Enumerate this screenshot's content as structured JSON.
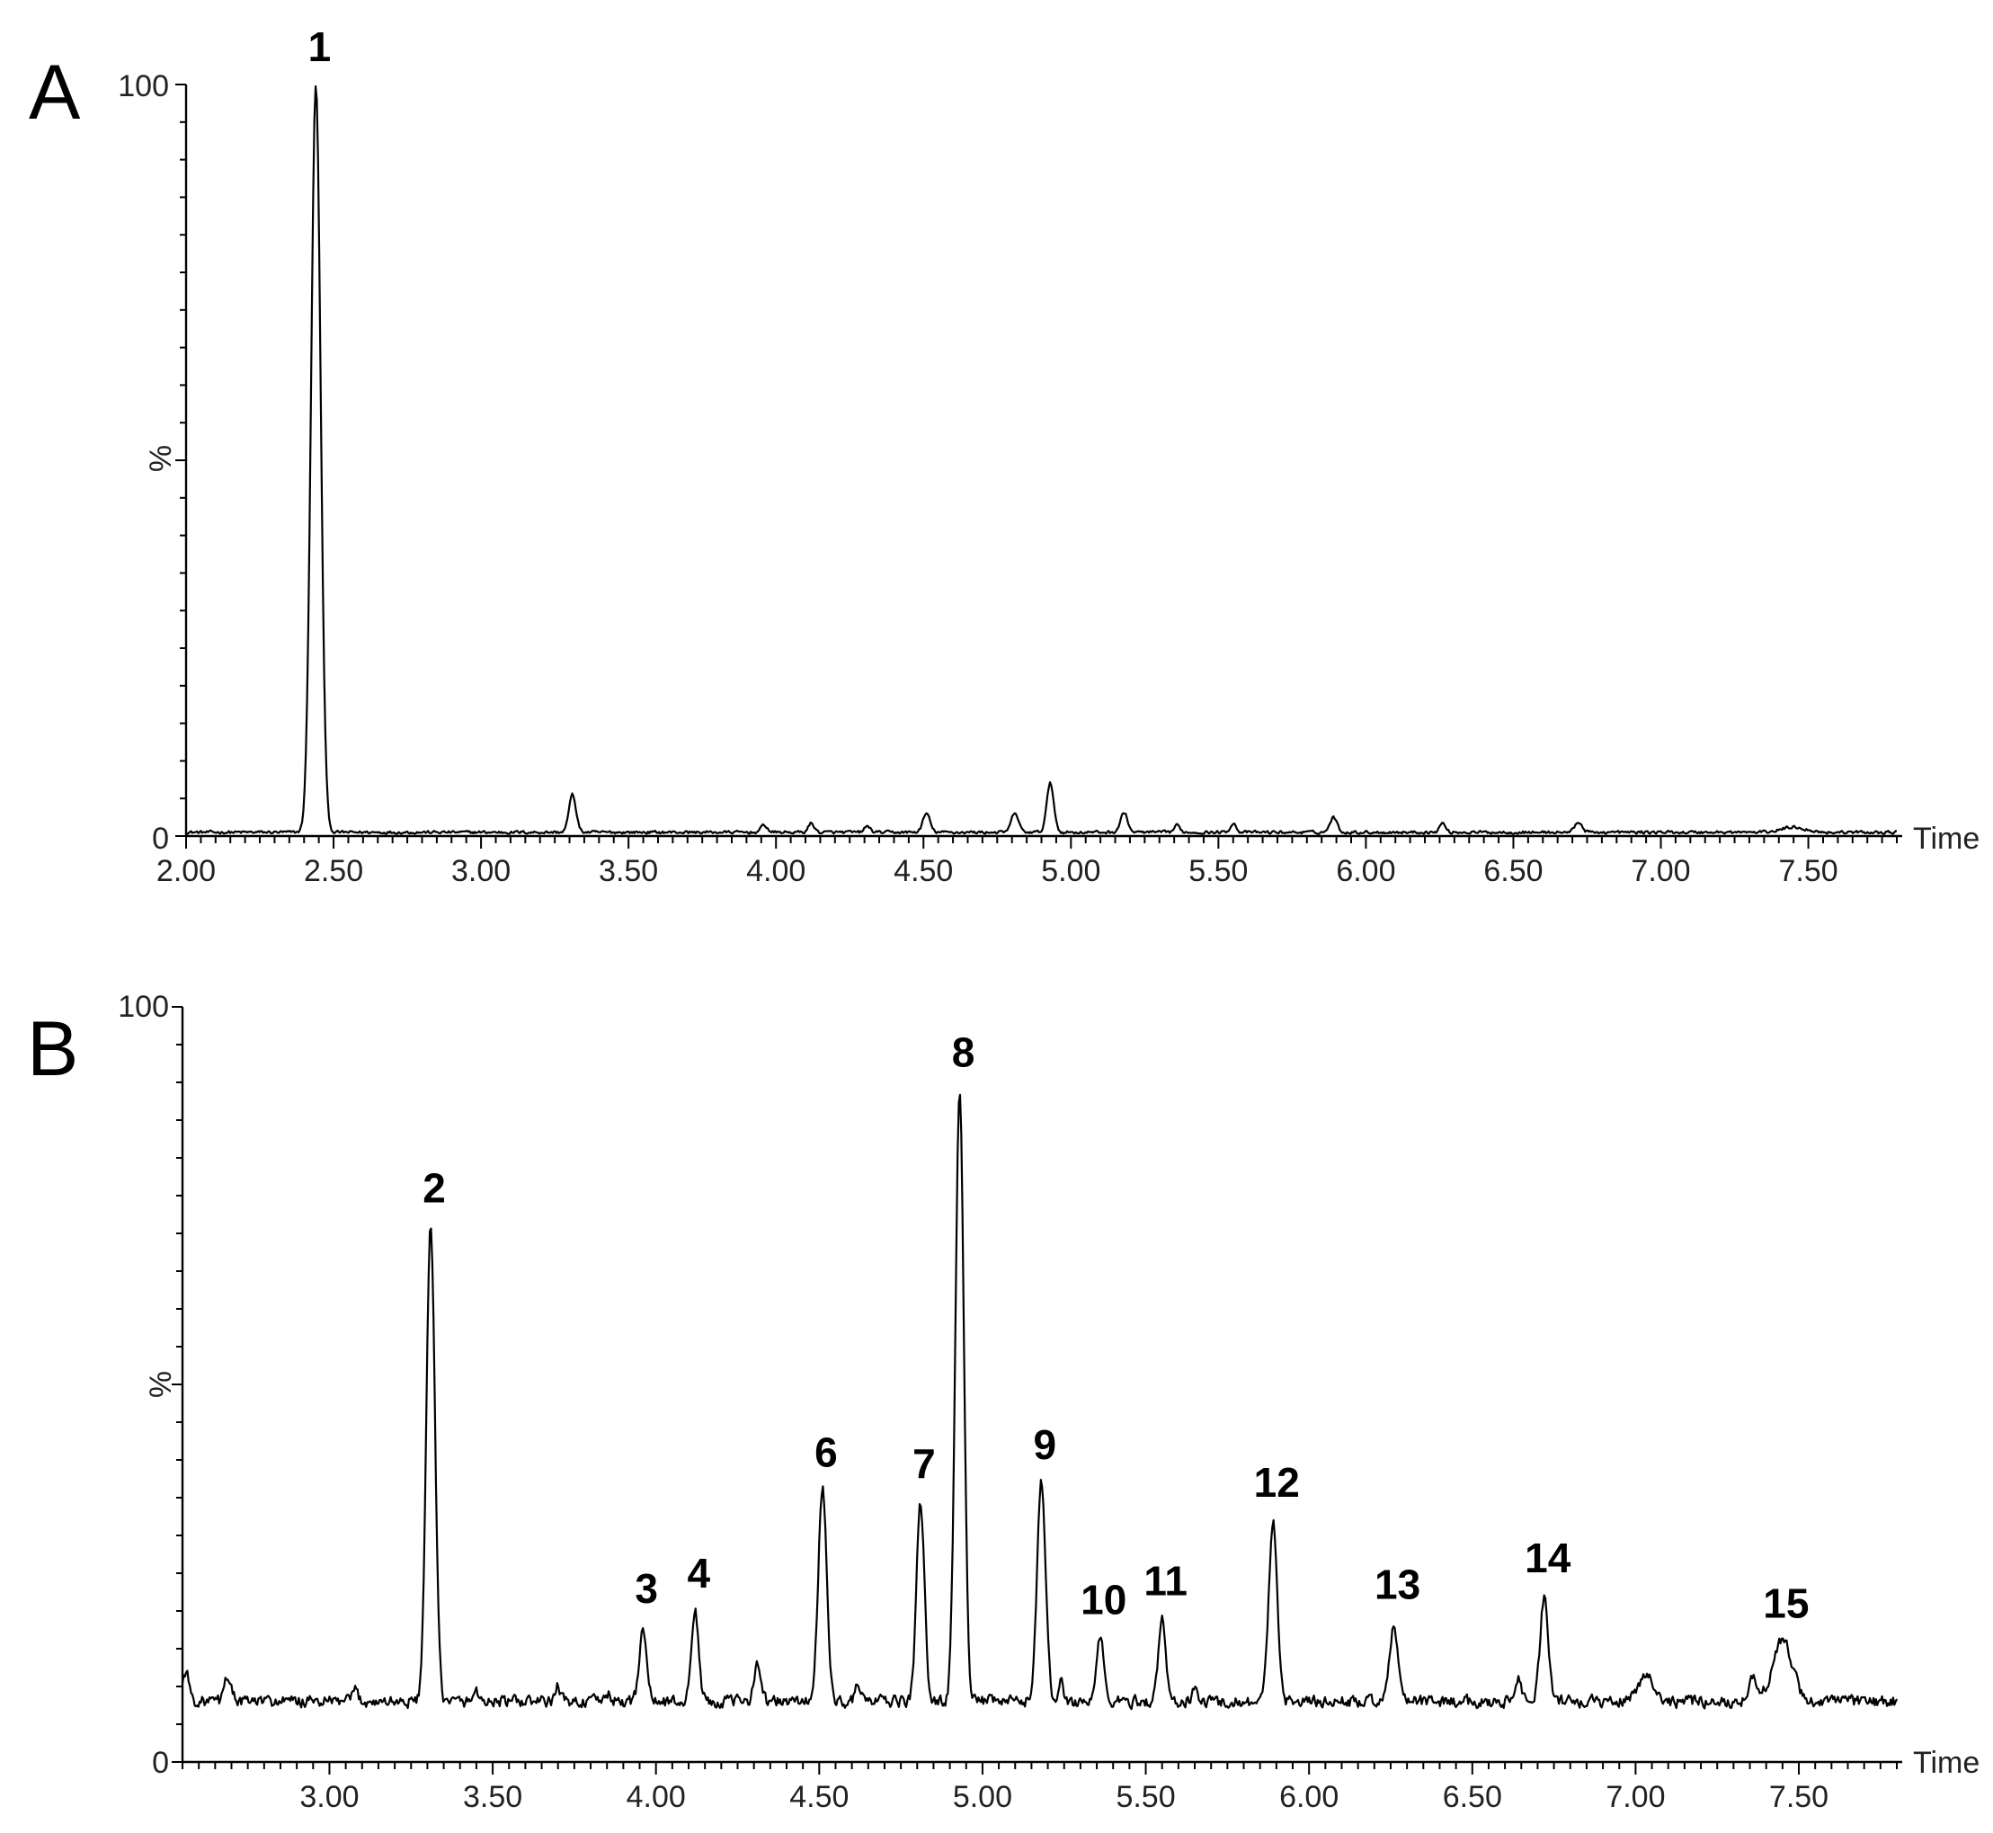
{
  "chart_data": [
    {
      "type": "line",
      "panel_label": "A",
      "xlabel": "Time",
      "ylabel": "%",
      "xlim": [
        2.0,
        7.8
      ],
      "ylim": [
        0,
        100
      ],
      "x_tick_values": [
        2.0,
        2.5,
        3.0,
        3.5,
        4.0,
        4.5,
        5.0,
        5.5,
        6.0,
        6.5,
        7.0,
        7.5
      ],
      "x_tick_labels": [
        "2.00",
        "2.50",
        "3.00",
        "3.50",
        "4.00",
        "4.50",
        "5.00",
        "5.50",
        "6.00",
        "6.50",
        "7.00",
        "7.50"
      ],
      "y_tick_labels": [
        "0",
        "100"
      ],
      "baseline": 0.5,
      "peaks": [
        {
          "t": 2.44,
          "h": 99.5,
          "w": 0.016,
          "label": "1"
        },
        {
          "t": 3.31,
          "h": 5.0,
          "w": 0.012
        },
        {
          "t": 3.96,
          "h": 1.0,
          "w": 0.01
        },
        {
          "t": 4.12,
          "h": 1.2,
          "w": 0.01
        },
        {
          "t": 4.31,
          "h": 0.8,
          "w": 0.01
        },
        {
          "t": 4.51,
          "h": 2.5,
          "w": 0.012
        },
        {
          "t": 4.81,
          "h": 2.6,
          "w": 0.012
        },
        {
          "t": 4.93,
          "h": 6.5,
          "w": 0.012
        },
        {
          "t": 5.18,
          "h": 2.6,
          "w": 0.012
        },
        {
          "t": 5.36,
          "h": 0.9,
          "w": 0.01
        },
        {
          "t": 5.55,
          "h": 1.2,
          "w": 0.01
        },
        {
          "t": 5.89,
          "h": 2.0,
          "w": 0.012
        },
        {
          "t": 6.26,
          "h": 1.2,
          "w": 0.01
        },
        {
          "t": 6.72,
          "h": 1.4,
          "w": 0.012
        },
        {
          "t": 7.45,
          "h": 0.7,
          "w": 0.04
        }
      ]
    },
    {
      "type": "line",
      "panel_label": "B",
      "xlabel": "Time",
      "ylabel": "%",
      "xlim": [
        2.55,
        7.8
      ],
      "ylim": [
        0,
        100
      ],
      "x_tick_values": [
        3.0,
        3.5,
        4.0,
        4.5,
        5.0,
        5.5,
        6.0,
        6.5,
        7.0,
        7.5
      ],
      "x_tick_labels": [
        "3.00",
        "3.50",
        "4.00",
        "4.50",
        "5.00",
        "5.50",
        "6.00",
        "6.50",
        "7.00",
        "7.50"
      ],
      "y_tick_labels": [
        "0",
        "100"
      ],
      "baseline": 8.0,
      "peaks": [
        {
          "t": 2.56,
          "h": 4.0,
          "w": 0.01
        },
        {
          "t": 2.69,
          "h": 3.5,
          "w": 0.01
        },
        {
          "t": 3.08,
          "h": 1.5,
          "w": 0.008
        },
        {
          "t": 3.31,
          "h": 63.0,
          "w": 0.013,
          "label": "2"
        },
        {
          "t": 3.45,
          "h": 1.5,
          "w": 0.008
        },
        {
          "t": 3.7,
          "h": 2.0,
          "w": 0.008
        },
        {
          "t": 3.85,
          "h": 1.2,
          "w": 0.008
        },
        {
          "t": 3.96,
          "h": 10.0,
          "w": 0.011,
          "label": "3"
        },
        {
          "t": 4.12,
          "h": 12.0,
          "w": 0.011,
          "label": "4"
        },
        {
          "t": 4.31,
          "h": 5.0,
          "w": 0.011
        },
        {
          "t": 4.51,
          "h": 28.0,
          "w": 0.013,
          "label": "6"
        },
        {
          "t": 4.62,
          "h": 2.0,
          "w": 0.01
        },
        {
          "t": 4.81,
          "h": 26.5,
          "w": 0.012,
          "label": "7"
        },
        {
          "t": 4.93,
          "h": 81.0,
          "w": 0.013,
          "label": "8"
        },
        {
          "t": 5.18,
          "h": 29.0,
          "w": 0.013,
          "label": "9"
        },
        {
          "t": 5.24,
          "h": 2.5,
          "w": 0.008
        },
        {
          "t": 5.36,
          "h": 8.5,
          "w": 0.011,
          "label": "10"
        },
        {
          "t": 5.55,
          "h": 11.0,
          "w": 0.011,
          "label": "11"
        },
        {
          "t": 5.65,
          "h": 1.5,
          "w": 0.008
        },
        {
          "t": 5.89,
          "h": 24.0,
          "w": 0.013,
          "label": "12"
        },
        {
          "t": 6.26,
          "h": 10.5,
          "w": 0.012,
          "label": "13"
        },
        {
          "t": 6.64,
          "h": 3.5,
          "w": 0.01
        },
        {
          "t": 6.72,
          "h": 14.0,
          "w": 0.012,
          "label": "14"
        },
        {
          "t": 7.03,
          "h": 3.5,
          "w": 0.025
        },
        {
          "t": 7.36,
          "h": 3.0,
          "w": 0.015
        },
        {
          "t": 7.45,
          "h": 8.0,
          "w": 0.03,
          "label": "15"
        }
      ]
    }
  ]
}
